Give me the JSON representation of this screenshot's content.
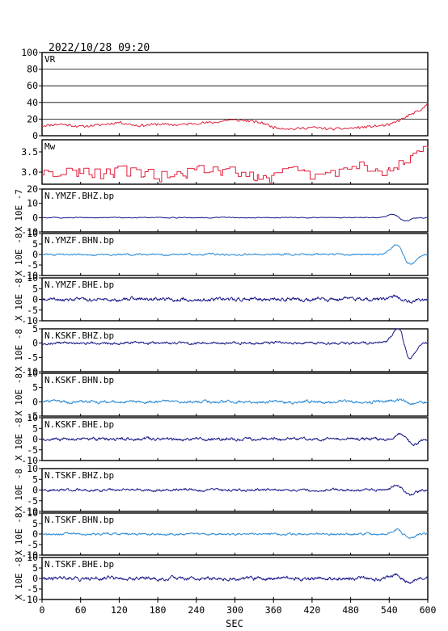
{
  "chart_data": {
    "type": "line",
    "datetime": "2022/10/28 09:20",
    "xlabel": "SEC",
    "xlim": [
      0,
      600
    ],
    "xticks": [
      0,
      60,
      120,
      180,
      240,
      300,
      360,
      420,
      480,
      540,
      600
    ],
    "colors": {
      "frame": "#000000",
      "vr_mw": "#e0203c",
      "dark": "#1a1a8c",
      "light": "#2a8ad6"
    },
    "panels": [
      {
        "label": "VR",
        "kind": "vr",
        "ylim": [
          0,
          100
        ],
        "yticks": [
          0,
          20,
          40,
          60,
          80,
          100
        ],
        "grid": true,
        "color": "#e0203c",
        "points": [
          [
            0,
            12
          ],
          [
            30,
            14
          ],
          [
            60,
            11
          ],
          [
            90,
            13
          ],
          [
            120,
            16
          ],
          [
            150,
            12
          ],
          [
            180,
            14
          ],
          [
            210,
            13
          ],
          [
            240,
            15
          ],
          [
            270,
            16
          ],
          [
            290,
            19
          ],
          [
            320,
            18
          ],
          [
            345,
            15
          ],
          [
            360,
            10
          ],
          [
            390,
            8
          ],
          [
            420,
            10
          ],
          [
            450,
            8
          ],
          [
            480,
            9
          ],
          [
            510,
            11
          ],
          [
            540,
            13
          ],
          [
            555,
            18
          ],
          [
            570,
            24
          ],
          [
            580,
            28
          ],
          [
            590,
            30
          ],
          [
            596,
            36
          ],
          [
            600,
            40
          ]
        ]
      },
      {
        "label": "Mw",
        "kind": "mw",
        "ylim": [
          2.7,
          3.8
        ],
        "yticks": [
          3.0,
          3.5
        ],
        "yticklabels": [
          "3.0",
          "3.5"
        ],
        "grid": false,
        "color": "#e0203c",
        "points": [
          [
            0,
            2.93
          ],
          [
            20,
            2.95
          ],
          [
            40,
            3.08
          ],
          [
            60,
            3.0
          ],
          [
            80,
            2.98
          ],
          [
            100,
            2.95
          ],
          [
            120,
            3.05
          ],
          [
            140,
            2.97
          ],
          [
            160,
            3.0
          ],
          [
            180,
            2.88
          ],
          [
            200,
            2.9
          ],
          [
            220,
            2.95
          ],
          [
            240,
            3.02
          ],
          [
            260,
            3.1
          ],
          [
            280,
            3.0
          ],
          [
            300,
            3.03
          ],
          [
            320,
            2.95
          ],
          [
            340,
            2.9
          ],
          [
            360,
            2.85
          ],
          [
            380,
            3.05
          ],
          [
            400,
            3.0
          ],
          [
            420,
            2.9
          ],
          [
            440,
            2.95
          ],
          [
            460,
            3.05
          ],
          [
            480,
            3.1
          ],
          [
            500,
            3.15
          ],
          [
            520,
            3.0
          ],
          [
            540,
            3.0
          ],
          [
            560,
            3.2
          ],
          [
            575,
            3.4
          ],
          [
            590,
            3.6
          ],
          [
            600,
            3.7
          ]
        ]
      },
      {
        "label": "N.YMZF.BHZ.bp",
        "kind": "wave",
        "ylim": [
          -10,
          20
        ],
        "yticks": [
          -10,
          0,
          10,
          20
        ],
        "scale": "X 10E -7",
        "color": "#1a1a8c",
        "noise": 0.2,
        "pulses": [
          {
            "t": 555,
            "amp": 3,
            "w": 14
          }
        ]
      },
      {
        "label": "N.YMZF.BHN.bp",
        "kind": "wave",
        "ylim": [
          -10,
          10
        ],
        "yticks": [
          -10,
          -5,
          0,
          5,
          10
        ],
        "scale": "X 10E -8",
        "color": "#2a8ad6",
        "noise": 0.3,
        "pulses": [
          {
            "t": 562,
            "amp": 6,
            "w": 16
          }
        ]
      },
      {
        "label": "N.YMZF.BHE.bp",
        "kind": "wave",
        "ylim": [
          -10,
          10
        ],
        "yticks": [
          -10,
          -5,
          0,
          5,
          10
        ],
        "scale": "X 10E -8",
        "color": "#1a1a8c",
        "noise": 0.6,
        "pulses": [
          {
            "t": 560,
            "amp": 1.2,
            "w": 16
          }
        ]
      },
      {
        "label": "N.KSKF.BHZ.bp",
        "kind": "wave",
        "ylim": [
          -10,
          5
        ],
        "yticks": [
          -10,
          -5,
          0,
          5
        ],
        "scale": "X 10E -8",
        "color": "#1a1a8c",
        "noise": 0.3,
        "pulses": [
          {
            "t": 563,
            "amp": 7,
            "w": 14
          }
        ]
      },
      {
        "label": "N.KSKF.BHN.bp",
        "kind": "wave",
        "ylim": [
          -5,
          10
        ],
        "yticks": [
          -5,
          0,
          5,
          10
        ],
        "scale": "X 10E -8",
        "color": "#2a8ad6",
        "noise": 0.35,
        "pulses": [
          {
            "t": 565,
            "amp": 0.8,
            "w": 16
          }
        ]
      },
      {
        "label": "N.KSKF.BHE.bp",
        "kind": "wave",
        "ylim": [
          -10,
          10
        ],
        "yticks": [
          -10,
          -5,
          0,
          5,
          10
        ],
        "scale": "X 10E -8",
        "color": "#1a1a8c",
        "noise": 0.5,
        "pulses": [
          {
            "t": 568,
            "amp": 3,
            "w": 14
          }
        ]
      },
      {
        "label": "N.TSKF.BHZ.bp",
        "kind": "wave",
        "ylim": [
          -10,
          10
        ],
        "yticks": [
          -10,
          -5,
          0,
          5,
          10
        ],
        "scale": "X 10E -8",
        "color": "#1a1a8c",
        "noise": 0.4,
        "pulses": [
          {
            "t": 562,
            "amp": 3,
            "w": 14
          }
        ]
      },
      {
        "label": "N.TSKF.BHN.bp",
        "kind": "wave",
        "ylim": [
          -10,
          10
        ],
        "yticks": [
          -10,
          -5,
          0,
          5,
          10
        ],
        "scale": "X 10E -8",
        "color": "#2a8ad6",
        "noise": 0.35,
        "pulses": [
          {
            "t": 562,
            "amp": 2.5,
            "w": 14
          }
        ]
      },
      {
        "label": "N.TSKF.BHE.bp",
        "kind": "wave",
        "ylim": [
          -10,
          10
        ],
        "yticks": [
          -10,
          -5,
          0,
          5,
          10
        ],
        "scale": "X 10E -8",
        "color": "#1a1a8c",
        "noise": 0.6,
        "pulses": [
          {
            "t": 560,
            "amp": 2,
            "w": 14
          }
        ]
      }
    ]
  }
}
